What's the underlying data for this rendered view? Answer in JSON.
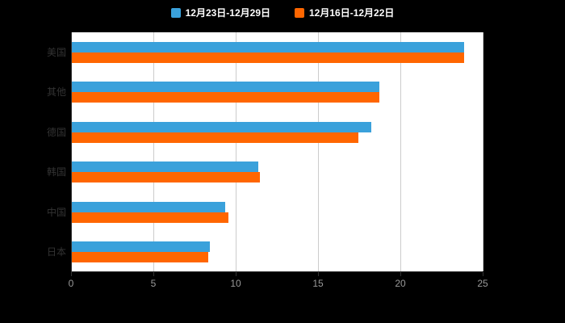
{
  "chart_data": {
    "type": "bar",
    "orientation": "horizontal",
    "title": "",
    "categories": [
      "美国",
      "其他",
      "德国",
      "韩国",
      "中国",
      "日本"
    ],
    "series": [
      {
        "name": "12月23日-12月29日",
        "color": "#3AA1DB",
        "values": [
          23.8,
          18.7,
          18.2,
          11.3,
          9.3,
          8.4
        ]
      },
      {
        "name": "12月16日-12月22日",
        "color": "#FF6600",
        "values": [
          23.8,
          18.7,
          17.4,
          11.4,
          9.5,
          8.3
        ]
      }
    ],
    "xlim": [
      0,
      25
    ],
    "xticks": [
      0,
      5,
      10,
      15,
      20,
      25
    ],
    "xlabel": "",
    "ylabel": "",
    "grid": true,
    "legend_position": "top",
    "background_color": "#000000",
    "plot_background_color": "#ffffff"
  }
}
